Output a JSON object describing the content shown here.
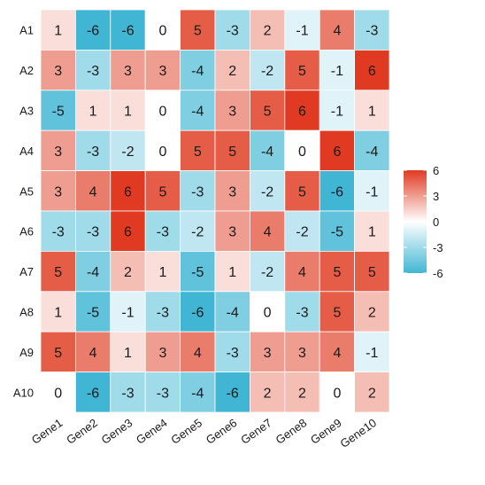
{
  "chart_data": {
    "type": "heatmap",
    "rows": [
      "A1",
      "A2",
      "A3",
      "A4",
      "A5",
      "A6",
      "A7",
      "A8",
      "A9",
      "A10"
    ],
    "columns": [
      "Gene1",
      "Gene2",
      "Gene3",
      "Gene4",
      "Gene5",
      "Gene6",
      "Gene7",
      "Gene8",
      "Gene9",
      "Gene10"
    ],
    "values": [
      [
        1,
        -6,
        -6,
        0,
        5,
        -3,
        2,
        -1,
        4,
        -3
      ],
      [
        3,
        -3,
        3,
        3,
        -4,
        2,
        -2,
        5,
        -1,
        6
      ],
      [
        -5,
        1,
        1,
        0,
        -4,
        3,
        5,
        6,
        -1,
        1
      ],
      [
        3,
        -3,
        -2,
        0,
        5,
        5,
        -4,
        0,
        6,
        -4
      ],
      [
        3,
        4,
        6,
        5,
        -3,
        3,
        -2,
        5,
        -6,
        -1
      ],
      [
        -3,
        -3,
        6,
        -3,
        -2,
        3,
        4,
        -2,
        -5,
        1
      ],
      [
        5,
        -4,
        2,
        1,
        -5,
        1,
        -2,
        4,
        5,
        5
      ],
      [
        1,
        -5,
        -1,
        -3,
        -6,
        -4,
        0,
        -3,
        5,
        2
      ],
      [
        5,
        4,
        1,
        3,
        4,
        -3,
        3,
        3,
        4,
        -1
      ],
      [
        0,
        -6,
        -3,
        -3,
        -4,
        -6,
        2,
        2,
        0,
        2
      ]
    ],
    "color_scale": {
      "low": "#41b6d4",
      "mid": "#ffffff",
      "high": "#e03b22",
      "range": [
        -6,
        6
      ]
    },
    "legend": {
      "position": "right",
      "ticks": [
        "6",
        "3",
        "0",
        "-3",
        "-6"
      ]
    },
    "title": "",
    "xlabel": "",
    "ylabel": "",
    "show_cell_values": true
  }
}
